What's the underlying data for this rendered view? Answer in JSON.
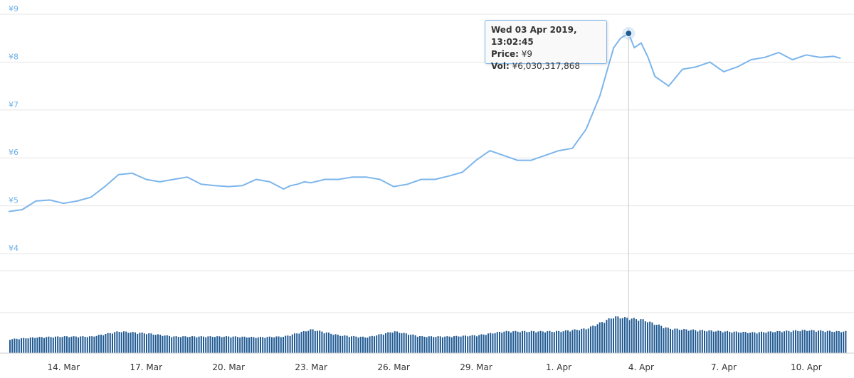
{
  "chart_data": {
    "type": "line",
    "xlim": [
      "2019-03-12",
      "2019-04-11"
    ],
    "ylim": [
      4,
      9
    ],
    "y_ticks": [
      "¥4",
      "¥5",
      "¥6",
      "¥7",
      "¥8",
      "¥9"
    ],
    "x_ticks": [
      "14. Mar",
      "17. Mar",
      "20. Mar",
      "23. Mar",
      "26. Mar",
      "29. Mar",
      "1. Apr",
      "4. Apr",
      "7. Apr",
      "10. Apr"
    ],
    "colors": {
      "line": "#7cb5ec",
      "volume": "#1f5a93",
      "tick": "#6aaee8",
      "grid": "#e6e6e6",
      "marker": "#1f5a93"
    },
    "price_series": {
      "x": [
        "2019-03-12 00:00",
        "2019-03-12 12:00",
        "2019-03-13 00:00",
        "2019-03-13 12:00",
        "2019-03-14 00:00",
        "2019-03-14 12:00",
        "2019-03-15 00:00",
        "2019-03-15 12:00",
        "2019-03-16 00:00",
        "2019-03-16 12:00",
        "2019-03-17 00:00",
        "2019-03-17 12:00",
        "2019-03-18 00:00",
        "2019-03-18 12:00",
        "2019-03-19 00:00",
        "2019-03-19 12:00",
        "2019-03-20 00:00",
        "2019-03-20 12:00",
        "2019-03-21 00:00",
        "2019-03-21 12:00",
        "2019-03-22 00:00",
        "2019-03-22 06:00",
        "2019-03-22 12:00",
        "2019-03-22 18:00",
        "2019-03-23 00:00",
        "2019-03-23 12:00",
        "2019-03-24 00:00",
        "2019-03-24 12:00",
        "2019-03-25 00:00",
        "2019-03-25 12:00",
        "2019-03-26 00:00",
        "2019-03-26 12:00",
        "2019-03-27 00:00",
        "2019-03-27 12:00",
        "2019-03-28 00:00",
        "2019-03-28 12:00",
        "2019-03-29 00:00",
        "2019-03-29 12:00",
        "2019-03-30 00:00",
        "2019-03-30 12:00",
        "2019-03-31 00:00",
        "2019-03-31 12:00",
        "2019-04-01 00:00",
        "2019-04-01 12:00",
        "2019-04-02 00:00",
        "2019-04-02 12:00",
        "2019-04-02 18:00",
        "2019-04-03 00:00",
        "2019-04-03 06:00",
        "2019-04-03 13:02",
        "2019-04-03 18:00",
        "2019-04-04 00:00",
        "2019-04-04 06:00",
        "2019-04-04 12:00",
        "2019-04-05 00:00",
        "2019-04-05 12:00",
        "2019-04-06 00:00",
        "2019-04-06 12:00",
        "2019-04-07 00:00",
        "2019-04-07 12:00",
        "2019-04-08 00:00",
        "2019-04-08 12:00",
        "2019-04-09 00:00",
        "2019-04-09 12:00",
        "2019-04-10 00:00",
        "2019-04-10 12:00",
        "2019-04-11 00:00",
        "2019-04-11 06:00"
      ],
      "y": [
        4.88,
        4.92,
        5.1,
        5.12,
        5.05,
        5.1,
        5.18,
        5.4,
        5.65,
        5.68,
        5.55,
        5.5,
        5.55,
        5.6,
        5.45,
        5.42,
        5.4,
        5.42,
        5.55,
        5.5,
        5.35,
        5.42,
        5.45,
        5.5,
        5.48,
        5.55,
        5.55,
        5.6,
        5.6,
        5.55,
        5.4,
        5.45,
        5.55,
        5.55,
        5.62,
        5.7,
        5.95,
        6.15,
        6.05,
        5.95,
        5.95,
        6.05,
        6.15,
        6.2,
        6.6,
        7.3,
        7.8,
        8.3,
        8.5,
        8.6,
        8.3,
        8.4,
        8.1,
        7.7,
        7.5,
        7.85,
        7.9,
        8.0,
        7.8,
        7.9,
        8.05,
        8.1,
        8.2,
        8.05,
        8.15,
        8.1,
        8.12,
        8.08
      ]
    },
    "volume_series": {
      "x": [
        "2019-03-12",
        "2019-03-13",
        "2019-03-14",
        "2019-03-15",
        "2019-03-16",
        "2019-03-17",
        "2019-03-18",
        "2019-03-19",
        "2019-03-20",
        "2019-03-21",
        "2019-03-22",
        "2019-03-23",
        "2019-03-24",
        "2019-03-25",
        "2019-03-26",
        "2019-03-27",
        "2019-03-28",
        "2019-03-29",
        "2019-03-30",
        "2019-03-31",
        "2019-04-01",
        "2019-04-02",
        "2019-04-03",
        "2019-04-04",
        "2019-04-05",
        "2019-04-06",
        "2019-04-07",
        "2019-04-08",
        "2019-04-09",
        "2019-04-10",
        "2019-04-11"
      ],
      "y": [
        0.35,
        0.4,
        0.42,
        0.42,
        0.55,
        0.5,
        0.42,
        0.42,
        0.42,
        0.4,
        0.42,
        0.6,
        0.45,
        0.4,
        0.55,
        0.42,
        0.42,
        0.45,
        0.55,
        0.55,
        0.55,
        0.62,
        0.92,
        0.85,
        0.62,
        0.58,
        0.55,
        0.52,
        0.55,
        0.58,
        0.55
      ]
    },
    "tooltip": {
      "date": "Wed 03 Apr 2019, 13:02:45",
      "price_label": "Price:",
      "price_value": "¥9",
      "vol_label": "Vol:",
      "vol_value": "¥6,030,317,868"
    }
  }
}
